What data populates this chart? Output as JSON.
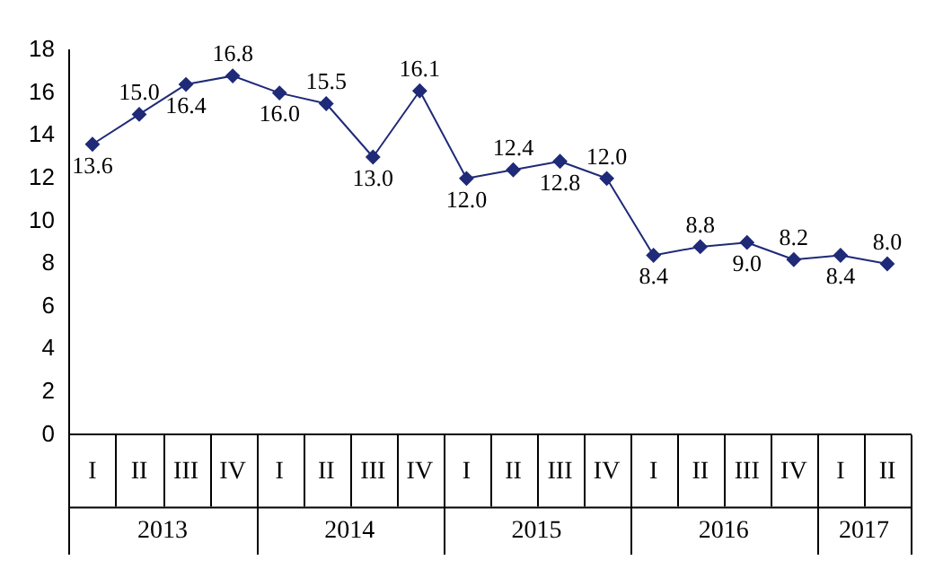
{
  "chart_data": {
    "type": "line",
    "categories": [
      "I",
      "II",
      "III",
      "IV",
      "I",
      "II",
      "III",
      "IV",
      "I",
      "II",
      "III",
      "IV",
      "I",
      "II",
      "III",
      "IV",
      "I",
      "II"
    ],
    "series": [
      {
        "color": "#1f2a78",
        "values": [
          13.6,
          15.0,
          16.4,
          16.8,
          16.0,
          15.5,
          13.0,
          16.1,
          12.0,
          12.4,
          12.8,
          12.0,
          8.4,
          8.8,
          9.0,
          8.2,
          8.4,
          8.0
        ],
        "value_labels": [
          "13.6",
          "15.0",
          "16.4",
          "16.8",
          "16.0",
          "15.5",
          "13.0",
          "16.1",
          "12.0",
          "12.4",
          "12.8",
          "12.0",
          "8.4",
          "8.8",
          "9.0",
          "8.2",
          "8.4",
          "8.0"
        ]
      }
    ],
    "ylim": [
      0,
      18
    ],
    "yticks": [
      0,
      2,
      4,
      6,
      8,
      10,
      12,
      14,
      16,
      18
    ],
    "grid": false,
    "legend": false,
    "marker": "diamond",
    "line_style": "solid",
    "annotations": [
      "2013",
      "2014",
      "2015",
      "2016",
      "2017"
    ]
  }
}
